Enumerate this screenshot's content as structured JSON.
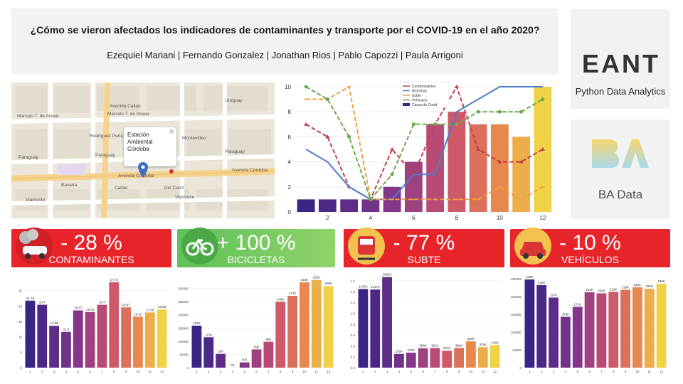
{
  "header": {
    "title": "¿Cómo se vieron afectados los indicadores de contaminantes y transporte por el COVID-19 en el año 2020?",
    "authors": "Ezequiel Mariani | Fernando Gonzalez | Jonathan Rios | Pablo Capozzi | Paula Arrigoni"
  },
  "logos": {
    "eant": {
      "mark": "EANT",
      "caption": "Python Data Analytics"
    },
    "ba": {
      "mark": "BA",
      "caption": "BA Data"
    }
  },
  "map": {
    "popup": {
      "line1": "Estación",
      "line2": "Ambiental",
      "line3": "Córdoba"
    },
    "streets": [
      "Marcelo T. de Alvear",
      "Marcelo T. de Alvear",
      "Paraguay",
      "Paraguay",
      "Paraguay",
      "Avenida Córdoba",
      "Avenida Córdoba",
      "Viamonte",
      "Viamonte",
      "Avenida Callao",
      "Rodríguez Peña",
      "Montevideo",
      "Uruguay",
      "Callao",
      "Bavaria",
      "Del Carril"
    ]
  },
  "chart_data": [
    {
      "type": "line",
      "x_ticks": [
        2,
        4,
        6,
        8,
        10,
        12
      ],
      "ylim": [
        0,
        10
      ],
      "y_ticks": [
        0,
        2,
        4,
        6,
        8,
        10
      ],
      "legend": [
        "Contaminantes",
        "Bicicletas",
        "Subte",
        "Vehículos",
        "Casos de Covid"
      ],
      "legend_position": "top-right",
      "series": [
        {
          "name": "Contaminantes",
          "color": "#c73a4a",
          "x": [
            1,
            2,
            3,
            4,
            5,
            6,
            7,
            8,
            9,
            10,
            11,
            12
          ],
          "values": [
            7,
            6,
            2,
            1,
            5,
            3,
            7,
            10,
            5,
            4,
            4,
            5
          ]
        },
        {
          "name": "Bicicletas",
          "color": "#4c7ec9",
          "x": [
            1,
            2,
            3,
            4,
            5,
            6,
            7,
            8,
            9,
            10,
            11,
            12
          ],
          "values": [
            5,
            4,
            2,
            1,
            1,
            3,
            3,
            8,
            9,
            10,
            10,
            10
          ]
        },
        {
          "name": "Subte",
          "color": "#f0a040",
          "x": [
            1,
            2,
            3,
            4,
            5,
            6,
            7,
            8,
            9,
            10,
            11,
            12
          ],
          "values": [
            9,
            9,
            10,
            1,
            1,
            1,
            1,
            1,
            1,
            2,
            1,
            2
          ]
        },
        {
          "name": "Vehículos",
          "color": "#6aa84f",
          "x": [
            1,
            2,
            3,
            4,
            5,
            6,
            7,
            8,
            9,
            10,
            11,
            12
          ],
          "values": [
            10,
            9,
            6,
            1,
            3,
            7,
            7,
            7,
            8,
            8,
            8,
            9
          ]
        },
        {
          "name": "Casos de Covid",
          "type": "bar",
          "x": [
            1,
            2,
            3,
            4,
            5,
            6,
            7,
            8,
            9,
            10,
            11,
            12
          ],
          "values": [
            1,
            1,
            1,
            1,
            2,
            4,
            7,
            8,
            7,
            7,
            6,
            10
          ]
        }
      ]
    },
    {
      "type": "bar",
      "categories": [
        "1",
        "2",
        "3",
        "4",
        "5",
        "6",
        "7",
        "8",
        "9",
        "10",
        "11",
        "12"
      ],
      "values": [
        21.75,
        20.4,
        13.58,
        11.6,
        18.57,
        18.03,
        20.4,
        27.74,
        19.57,
        16.52,
        17.89,
        18.89
      ],
      "labels": [
        "21.75",
        "20.4",
        "13.58",
        "11.6",
        "18.57",
        "18.03",
        "20.4",
        "27.74",
        "19.57",
        "16.52",
        "17.89",
        "18.89"
      ],
      "ylim": [
        0,
        30
      ],
      "y_ticks": [
        "0",
        "5",
        "10",
        "15",
        "20",
        "25"
      ]
    },
    {
      "type": "bar",
      "categories": [
        "1",
        "2",
        "3",
        "4",
        "5",
        "6",
        "7",
        "8",
        "9",
        "10",
        "11",
        "12"
      ],
      "values": [
        159000,
        115000,
        52000,
        0,
        20000,
        69000,
        98000,
        249000,
        272000,
        323000,
        332000,
        309000
      ],
      "labels": [
        "159K",
        "115K",
        "52K",
        "0K",
        "20K",
        "69K",
        "98K",
        "249K",
        "272K",
        "323K",
        "332K",
        "309K"
      ],
      "ylim": [
        0,
        350000
      ],
      "y_ticks": [
        "0",
        "50000",
        "100000",
        "150000",
        "200000",
        "250000",
        "300000"
      ]
    },
    {
      "type": "bar",
      "categories": [
        "1",
        "2",
        "3",
        "4",
        "5",
        "6",
        "7",
        "8",
        "9",
        "10",
        "11",
        "12"
      ],
      "values": [
        1445000,
        1437000,
        1666000,
        252000,
        276000,
        358000,
        361000,
        312000,
        362000,
        486000,
        376000,
        415000
      ],
      "labels": [
        "1445K",
        "1437K",
        "1666K",
        "252K",
        "276K",
        "358K",
        "361K",
        "312K",
        "362K",
        "486K",
        "376K",
        "415K"
      ],
      "ylim": [
        0,
        1700000
      ],
      "y_ticks": [
        "0.0",
        "0.2",
        "0.4",
        "0.6",
        "0.8",
        "1.0",
        "1.2",
        "1.4",
        "1.6"
      ]
    },
    {
      "type": "bar",
      "categories": [
        "1",
        "2",
        "3",
        "4",
        "5",
        "6",
        "7",
        "8",
        "9",
        "10",
        "11",
        "12"
      ],
      "values": [
        248000,
        232000,
        197000,
        143000,
        171000,
        212000,
        209000,
        213000,
        219000,
        226000,
        222000,
        236000
      ],
      "labels": [
        "248K",
        "232K",
        "197K",
        "143K",
        "171K",
        "212K",
        "209K",
        "213K",
        "219K",
        "226K",
        "222K",
        "236K"
      ],
      "ylim": [
        0,
        260000
      ],
      "y_ticks": [
        "0",
        "50000",
        "100000",
        "150000",
        "200000",
        "250000"
      ]
    }
  ],
  "banners": [
    {
      "pct": "- 28 %",
      "label": "CONTAMINANTES",
      "color": "#e8242b",
      "icon": "car-smoke-icon"
    },
    {
      "pct": "+ 100 %",
      "label": "BICICLETAS",
      "color": "#5fc15a",
      "icon": "bicycle-icon"
    },
    {
      "pct": "- 77 %",
      "label": "SUBTE",
      "color": "#e8242b",
      "icon": "subway-train-icon"
    },
    {
      "pct": "- 10 %",
      "label": "VEHÍCULOS",
      "color": "#e8242b",
      "icon": "car-icon"
    }
  ]
}
